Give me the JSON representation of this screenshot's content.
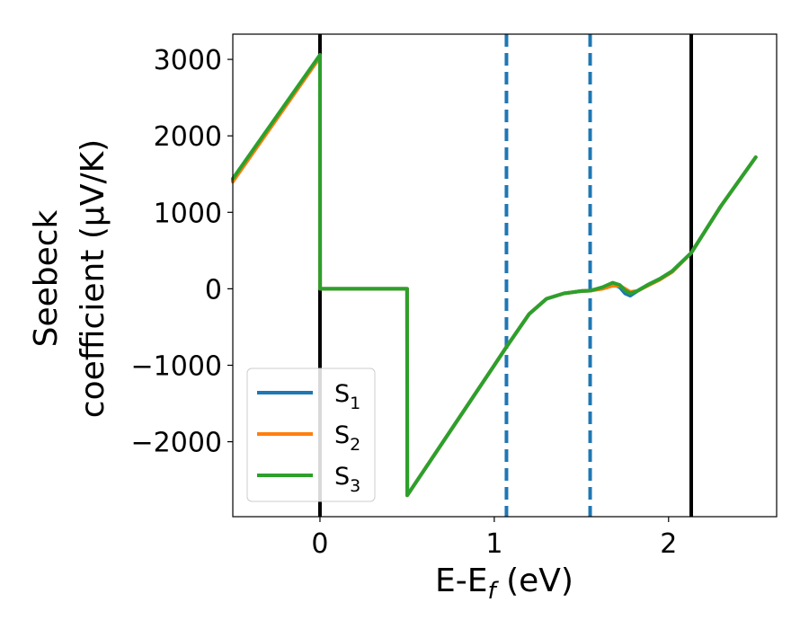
{
  "chart_data": {
    "type": "line",
    "title": "",
    "xlabel": "E-E",
    "xlabel_sub": "f",
    "xlabel_unit": " (eV)",
    "ylabel_line1": "Seebeck",
    "ylabel_line2": "coefficient  (μV/K)",
    "xlim": [
      -0.5,
      2.62
    ],
    "ylim": [
      -2980,
      3330
    ],
    "xticks": [
      0,
      1,
      2
    ],
    "yticks": [
      -2000,
      -1000,
      0,
      1000,
      2000,
      3000
    ],
    "xtick_labels": [
      "0",
      "1",
      "2"
    ],
    "ytick_labels": [
      "−2000",
      "−1000",
      "0",
      "1000",
      "2000",
      "3000"
    ],
    "vlines_solid": [
      0.0,
      2.13
    ],
    "vlines_dashed": [
      1.07,
      1.55
    ],
    "legend_position": "lower-left",
    "colors": {
      "S1": "#1f77b4",
      "S2": "#ff7f0e",
      "S3": "#2ca02c",
      "solid_line": "#000000",
      "dashed_line": "#1f77b4"
    },
    "series": [
      {
        "name": "S1",
        "label_main": "S",
        "label_sub": "1",
        "color": "#1f77b4",
        "x": [
          -0.5,
          0.0,
          0.001,
          0.5,
          0.501,
          1.0,
          1.07,
          1.2,
          1.3,
          1.4,
          1.5,
          1.55,
          1.62,
          1.68,
          1.72,
          1.75,
          1.78,
          1.82,
          1.88,
          1.95,
          2.02,
          2.13,
          2.3,
          2.5
        ],
        "y": [
          1420,
          3050,
          0,
          0,
          -2700,
          -1000,
          -760,
          -330,
          -130,
          -60,
          -30,
          -25,
          10,
          60,
          20,
          -60,
          -90,
          -30,
          50,
          130,
          230,
          470,
          1080,
          1720
        ]
      },
      {
        "name": "S2",
        "label_main": "S",
        "label_sub": "2",
        "color": "#ff7f0e",
        "x": [
          -0.5,
          0.0,
          0.001,
          0.5,
          0.501,
          1.0,
          1.07,
          1.2,
          1.3,
          1.4,
          1.5,
          1.55,
          1.62,
          1.68,
          1.72,
          1.75,
          1.78,
          1.82,
          1.88,
          1.95,
          2.02,
          2.13,
          2.3,
          2.5
        ],
        "y": [
          1400,
          3030,
          0,
          0,
          -2700,
          -1000,
          -760,
          -330,
          -130,
          -60,
          -30,
          -25,
          0,
          40,
          40,
          0,
          -40,
          -30,
          40,
          120,
          220,
          470,
          1080,
          1720
        ]
      },
      {
        "name": "S3",
        "label_main": "S",
        "label_sub": "3",
        "color": "#2ca02c",
        "x": [
          -0.5,
          0.0,
          0.001,
          0.5,
          0.501,
          1.0,
          1.07,
          1.2,
          1.3,
          1.4,
          1.5,
          1.55,
          1.62,
          1.68,
          1.72,
          1.75,
          1.78,
          1.82,
          1.88,
          1.95,
          2.02,
          2.13,
          2.3,
          2.5
        ],
        "y": [
          1440,
          3060,
          0,
          0,
          -2700,
          -1000,
          -760,
          -330,
          -130,
          -60,
          -30,
          -25,
          20,
          80,
          50,
          -20,
          -60,
          -30,
          50,
          130,
          230,
          470,
          1080,
          1720
        ]
      }
    ]
  }
}
